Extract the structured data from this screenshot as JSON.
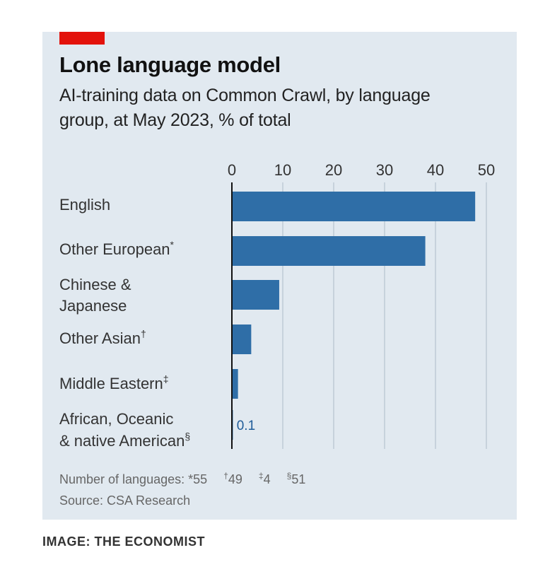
{
  "header": {
    "title": "Lone language model",
    "subtitle": "AI-training data on Common Crawl, by language group, at May 2023, % of total"
  },
  "colors": {
    "accent": "#e3120b",
    "bar": "#2f6ea7",
    "background": "#e1e9f0",
    "value_label": "#1f5c99"
  },
  "chart_data": {
    "type": "bar",
    "orientation": "horizontal",
    "title": "Lone language model",
    "subtitle": "AI-training data on Common Crawl, by language group, at May 2023, % of total",
    "xlim": [
      0,
      50
    ],
    "xticks": [
      0,
      10,
      20,
      30,
      40,
      50
    ],
    "categories": [
      {
        "label": "English",
        "sup": ""
      },
      {
        "label": "Other European",
        "sup": "*"
      },
      {
        "label": "Chinese & Japanese",
        "sup": ""
      },
      {
        "label": "Other Asian",
        "sup": "†"
      },
      {
        "label": "Middle Eastern",
        "sup": "‡"
      },
      {
        "label": "African, Oceanic & native American",
        "sup": "§"
      }
    ],
    "values": [
      47.8,
      38.0,
      9.3,
      3.8,
      1.2,
      0.1
    ],
    "data_labels": [
      "",
      "",
      "",
      "",
      "",
      "0.1"
    ],
    "grid": true,
    "tick_position": "top"
  },
  "footnotes": {
    "prefix": "Number of languages:",
    "items": [
      {
        "sym": "*",
        "value": "55"
      },
      {
        "sym": "†",
        "value": "49"
      },
      {
        "sym": "‡",
        "value": "4"
      },
      {
        "sym": "§",
        "value": "51"
      }
    ],
    "source": "Source: CSA Research"
  },
  "credit": "IMAGE: THE ECONOMIST"
}
